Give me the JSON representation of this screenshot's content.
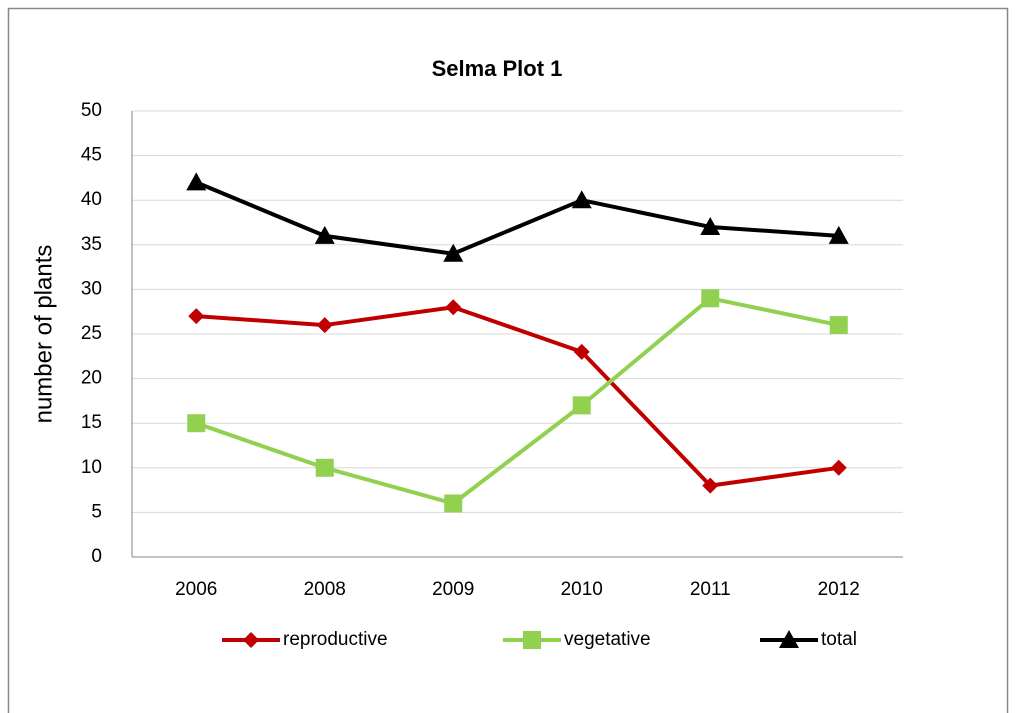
{
  "chart_data": {
    "type": "line",
    "title": "Selma Plot 1",
    "y_label": "number of plants",
    "categories": [
      "2006",
      "2008",
      "2009",
      "2010",
      "2011",
      "2012"
    ],
    "series": [
      {
        "name": "reproductive",
        "color": "#c00000",
        "marker": "diamond",
        "values": [
          27,
          26,
          28,
          23,
          8,
          10
        ]
      },
      {
        "name": "vegetative",
        "color": "#92d050",
        "marker": "square",
        "values": [
          15,
          10,
          6,
          17,
          29,
          26
        ]
      },
      {
        "name": "total",
        "color": "#000000",
        "marker": "triangle",
        "values": [
          42,
          36,
          34,
          40,
          37,
          36
        ]
      }
    ],
    "ylim": [
      0,
      50
    ],
    "yticks": [
      0,
      5,
      10,
      15,
      20,
      25,
      30,
      35,
      40,
      45,
      50
    ],
    "grid": true,
    "legend": "bottom"
  }
}
